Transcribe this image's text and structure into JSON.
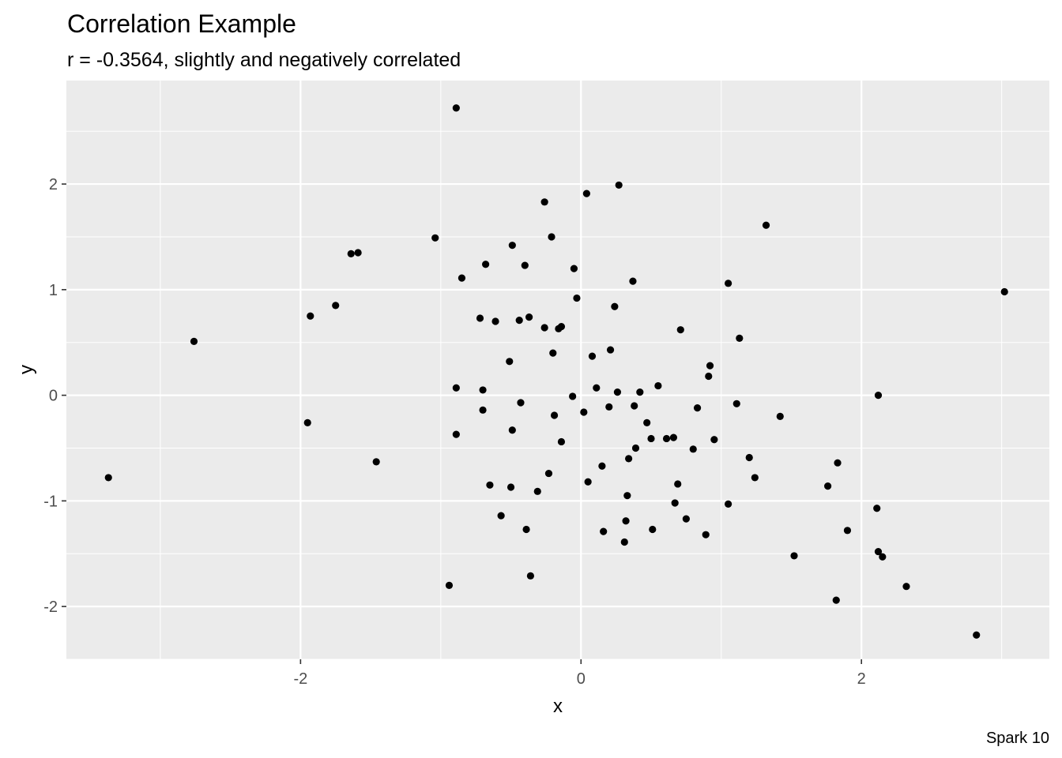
{
  "chart_data": {
    "type": "scatter",
    "title": "Correlation Example",
    "subtitle": "r = -0.3564, slightly and negatively correlated",
    "caption": "Spark 10",
    "xlabel": "x",
    "ylabel": "y",
    "xlim": [
      -3.67,
      3.34
    ],
    "ylim": [
      -2.5,
      2.98
    ],
    "x_ticks": [
      -2,
      0,
      2
    ],
    "x_tick_labels": [
      "-2",
      "0",
      "2"
    ],
    "y_ticks": [
      -2,
      -1,
      0,
      1,
      2
    ],
    "y_tick_labels": [
      "-2",
      "-1",
      "0",
      "1",
      "2"
    ],
    "grid": true,
    "colors": {
      "panel": "#EBEBEB",
      "grid": "#FFFFFF",
      "point": "#000000"
    },
    "points": [
      [
        -3.37,
        -0.78
      ],
      [
        -2.76,
        0.51
      ],
      [
        -1.95,
        -0.26
      ],
      [
        -1.93,
        0.75
      ],
      [
        -1.75,
        0.85
      ],
      [
        -1.64,
        1.34
      ],
      [
        -1.59,
        1.35
      ],
      [
        -1.46,
        -0.63
      ],
      [
        -1.04,
        1.49
      ],
      [
        -0.94,
        -1.8
      ],
      [
        -0.89,
        0.07
      ],
      [
        -0.89,
        -0.37
      ],
      [
        -0.89,
        2.72
      ],
      [
        -0.85,
        1.11
      ],
      [
        -0.72,
        0.73
      ],
      [
        -0.7,
        0.05
      ],
      [
        -0.7,
        -0.14
      ],
      [
        -0.68,
        1.24
      ],
      [
        -0.65,
        -0.85
      ],
      [
        -0.61,
        0.7
      ],
      [
        -0.57,
        -1.14
      ],
      [
        -0.51,
        0.32
      ],
      [
        -0.5,
        -0.87
      ],
      [
        -0.49,
        -0.33
      ],
      [
        -0.49,
        1.42
      ],
      [
        -0.44,
        0.71
      ],
      [
        -0.43,
        -0.07
      ],
      [
        -0.4,
        1.23
      ],
      [
        -0.39,
        -1.27
      ],
      [
        -0.37,
        0.74
      ],
      [
        -0.36,
        -1.71
      ],
      [
        -0.31,
        -0.91
      ],
      [
        -0.26,
        0.64
      ],
      [
        -0.26,
        1.83
      ],
      [
        -0.23,
        -0.74
      ],
      [
        -0.21,
        1.5
      ],
      [
        -0.2,
        0.4
      ],
      [
        -0.19,
        -0.19
      ],
      [
        -0.16,
        0.63
      ],
      [
        -0.14,
        0.65
      ],
      [
        -0.14,
        -0.44
      ],
      [
        -0.06,
        -0.01
      ],
      [
        -0.05,
        1.2
      ],
      [
        -0.03,
        0.92
      ],
      [
        0.02,
        -0.16
      ],
      [
        0.04,
        1.91
      ],
      [
        0.05,
        -0.82
      ],
      [
        0.08,
        0.37
      ],
      [
        0.11,
        0.07
      ],
      [
        0.15,
        -0.67
      ],
      [
        0.16,
        -1.29
      ],
      [
        0.2,
        -0.11
      ],
      [
        0.21,
        0.43
      ],
      [
        0.24,
        0.84
      ],
      [
        0.26,
        0.03
      ],
      [
        0.27,
        1.99
      ],
      [
        0.31,
        -1.39
      ],
      [
        0.32,
        -1.19
      ],
      [
        0.33,
        -0.95
      ],
      [
        0.34,
        -0.6
      ],
      [
        0.37,
        1.08
      ],
      [
        0.38,
        -0.1
      ],
      [
        0.39,
        -0.5
      ],
      [
        0.42,
        0.03
      ],
      [
        0.47,
        -0.26
      ],
      [
        0.5,
        -0.41
      ],
      [
        0.51,
        -1.27
      ],
      [
        0.55,
        0.09
      ],
      [
        0.61,
        -0.41
      ],
      [
        0.66,
        -0.4
      ],
      [
        0.67,
        -1.02
      ],
      [
        0.69,
        -0.84
      ],
      [
        0.71,
        0.62
      ],
      [
        0.75,
        -1.17
      ],
      [
        0.8,
        -0.51
      ],
      [
        0.83,
        -0.12
      ],
      [
        0.89,
        -1.32
      ],
      [
        0.91,
        0.18
      ],
      [
        0.92,
        0.28
      ],
      [
        0.95,
        -0.42
      ],
      [
        1.05,
        1.06
      ],
      [
        1.05,
        -1.03
      ],
      [
        1.11,
        -0.08
      ],
      [
        1.13,
        0.54
      ],
      [
        1.2,
        -0.59
      ],
      [
        1.24,
        -0.78
      ],
      [
        1.32,
        1.61
      ],
      [
        1.42,
        -0.2
      ],
      [
        1.52,
        -1.52
      ],
      [
        1.76,
        -0.86
      ],
      [
        1.82,
        -1.94
      ],
      [
        1.83,
        -0.64
      ],
      [
        1.9,
        -1.28
      ],
      [
        2.11,
        -1.07
      ],
      [
        2.12,
        -1.48
      ],
      [
        2.12,
        0.0
      ],
      [
        2.15,
        -1.53
      ],
      [
        2.32,
        -1.81
      ],
      [
        2.82,
        -2.27
      ],
      [
        3.02,
        0.98
      ]
    ]
  }
}
